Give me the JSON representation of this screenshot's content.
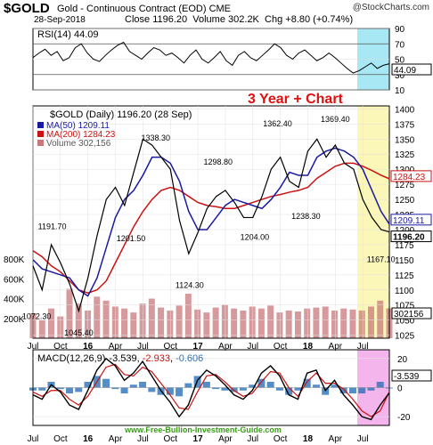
{
  "header": {
    "symbol": "$GOLD",
    "name": "Gold - Continuous Contract (EOD)",
    "exchange": "CME",
    "logo": "@StockCharts.com",
    "date": "28-Sep-2018",
    "close_label": "Close",
    "close_value": "1196.20",
    "volume_label": "Volume",
    "volume_value": "302.2K",
    "chg_label": "Chg",
    "chg_value": "+8.80 (+0.74%)"
  },
  "annotation_title": "3 Year + Chart",
  "watermark": "www.Free-Bullion-Investment-Guide.com",
  "colors": {
    "price": "#000000",
    "ma50": "#1a1aa0",
    "ma200": "#cc1111",
    "volume": "#c8787c",
    "rsi_highlight": "#a8e8f4",
    "price_highlight": "#fbf7b8",
    "macd_highlight": "#f4b4ec",
    "annotation": "#e01010",
    "watermark": "#3a9a1a"
  },
  "chart_data": [
    {
      "type": "line",
      "name": "rsi",
      "label": "RSI(14) 44.09",
      "current_value": "44.09",
      "ylim": [
        10,
        90
      ],
      "ticks": [
        "90",
        "70",
        "50",
        "30",
        "10"
      ],
      "reference_lines": [
        70,
        30
      ],
      "series": [
        {
          "values": [
            52,
            58,
            63,
            55,
            60,
            48,
            52,
            65,
            70,
            58,
            50,
            47,
            55,
            62,
            68,
            72,
            60,
            55,
            50,
            58,
            65,
            62,
            55,
            58,
            52,
            45,
            55,
            62,
            50,
            45,
            52,
            60,
            48,
            42,
            55,
            60,
            52,
            48,
            55,
            62,
            70,
            65,
            55,
            50,
            58,
            62,
            55,
            48,
            52,
            58,
            52,
            45,
            38,
            32,
            35,
            40,
            45,
            38,
            42,
            44.09
          ]
        }
      ]
    },
    {
      "type": "line",
      "name": "price",
      "label": "$GOLD (Daily) 1196.20 (28 Sep)",
      "ylim": [
        1020,
        1405
      ],
      "ticks": [
        "1400",
        "1375",
        "1350",
        "1325",
        "1300",
        "1275",
        "1250",
        "1225",
        "1200",
        "1175",
        "1150",
        "1125",
        "1100",
        "1075",
        "1050",
        "1025"
      ],
      "volume_ticks": [
        "800K",
        "600K",
        "400K",
        "200K"
      ],
      "x_ticks": [
        "Jul",
        "Oct",
        "16",
        "Apr",
        "Jul",
        "Oct",
        "17",
        "Apr",
        "Jul",
        "Oct",
        "18",
        "Apr",
        "Jul"
      ],
      "x_tick_pos": [
        0,
        3,
        6,
        9,
        12,
        15,
        18,
        21,
        24,
        27,
        30,
        33,
        36
      ],
      "x_range": [
        0,
        38.9
      ],
      "legend": [
        {
          "label": "MA(50) 1209.11",
          "color": "#1a1aa0"
        },
        {
          "label": "MA(200) 1284.23",
          "color": "#cc1111"
        },
        {
          "label": "Volume 302,156",
          "color": "#c8787c"
        }
      ],
      "right_labels": [
        {
          "text": "1284.23",
          "value": 1284.23,
          "color": "#cc1111"
        },
        {
          "text": "1209.11",
          "value": 1209.11,
          "color": "#1a1aa0"
        },
        {
          "text": "1196.20",
          "value": 1196.2,
          "color": "#000000"
        }
      ],
      "volume_label": "302156",
      "callouts": [
        {
          "text": "1072.30",
          "x": 0.4,
          "y": 1072.3
        },
        {
          "text": "1045.40",
          "x": 5.0,
          "y": 1045.4
        },
        {
          "text": "1191.70",
          "x": 2.1,
          "y": 1191.7
        },
        {
          "text": "1201.50",
          "x": 10.7,
          "y": 1201.5
        },
        {
          "text": "1338.30",
          "x": 13.4,
          "y": 1338.3
        },
        {
          "text": "1124.30",
          "x": 17.1,
          "y": 1124.3
        },
        {
          "text": "1298.80",
          "x": 20.2,
          "y": 1298.8
        },
        {
          "text": "1204.00",
          "x": 24.2,
          "y": 1204.0
        },
        {
          "text": "1362.40",
          "x": 26.7,
          "y": 1362.4
        },
        {
          "text": "1238.30",
          "x": 29.8,
          "y": 1238.3
        },
        {
          "text": "1369.40",
          "x": 33.0,
          "y": 1369.4
        },
        {
          "text": "1167.10",
          "x": 38.0,
          "y": 1167.1
        }
      ],
      "x": [
        0,
        1,
        2,
        3,
        4,
        5,
        6,
        7,
        8,
        9,
        10,
        11,
        12,
        13,
        14,
        15,
        16,
        17,
        18,
        19,
        20,
        21,
        22,
        23,
        24,
        25,
        26,
        27,
        28,
        29,
        30,
        31,
        32,
        33,
        34,
        35,
        36,
        37,
        38,
        38.9
      ],
      "series": [
        {
          "name": "$GOLD",
          "values": [
            1140,
            1100,
            1175,
            1145,
            1110,
            1065,
            1120,
            1190,
            1250,
            1270,
            1240,
            1295,
            1350,
            1340,
            1320,
            1300,
            1215,
            1160,
            1195,
            1235,
            1255,
            1265,
            1245,
            1220,
            1220,
            1255,
            1300,
            1320,
            1280,
            1270,
            1330,
            1350,
            1320,
            1340,
            1310,
            1300,
            1250,
            1220,
            1200,
            1196.2
          ]
        },
        {
          "name": "MA(50)",
          "values": [
            1150,
            1135,
            1130,
            1125,
            1120,
            1100,
            1090,
            1120,
            1170,
            1220,
            1250,
            1265,
            1290,
            1320,
            1320,
            1310,
            1280,
            1230,
            1200,
            1200,
            1220,
            1240,
            1250,
            1245,
            1240,
            1235,
            1250,
            1270,
            1295,
            1290,
            1290,
            1320,
            1330,
            1335,
            1330,
            1320,
            1300,
            1265,
            1230,
            1209.11
          ]
        },
        {
          "name": "MA(200)",
          "values": [
            1165,
            1155,
            1140,
            1130,
            1115,
            1100,
            1095,
            1100,
            1115,
            1145,
            1175,
            1205,
            1230,
            1250,
            1265,
            1270,
            1265,
            1255,
            1245,
            1240,
            1238,
            1235,
            1235,
            1240,
            1245,
            1250,
            1255,
            1258,
            1262,
            1265,
            1270,
            1285,
            1295,
            1305,
            1310,
            1310,
            1305,
            1298,
            1290,
            1284.23
          ]
        }
      ],
      "volume": [
        250,
        180,
        300,
        220,
        500,
        350,
        280,
        420,
        380,
        320,
        300,
        260,
        350,
        400,
        310,
        280,
        330,
        450,
        290,
        260,
        310,
        340,
        300,
        280,
        320,
        300,
        330,
        260,
        280,
        270,
        300,
        310,
        320,
        280,
        300,
        290,
        280,
        320,
        380,
        302
      ]
    },
    {
      "type": "line",
      "name": "macd",
      "label": "MACD(12,26,9) -3.539, -2.933, -0.606",
      "label_parts": [
        "MACD(12,26,9)",
        "-3.539",
        "-2.933",
        "-0.606"
      ],
      "current_value": "-3.539",
      "ylim": [
        -26,
        26
      ],
      "ticks": [
        "20",
        "0",
        "-20"
      ],
      "x_ticks": [
        "Jul",
        "Oct",
        "16",
        "Apr",
        "Jul",
        "Oct",
        "17",
        "Apr",
        "Jul",
        "Oct",
        "18",
        "Apr",
        "Jul"
      ],
      "series": [
        {
          "name": "MACD",
          "values": [
            -5,
            -8,
            2,
            -3,
            -12,
            -15,
            -2,
            12,
            20,
            15,
            5,
            10,
            18,
            8,
            -2,
            -10,
            -20,
            -12,
            5,
            12,
            8,
            2,
            -5,
            -8,
            -2,
            10,
            15,
            8,
            -5,
            -8,
            10,
            12,
            -2,
            5,
            -5,
            -12,
            -20,
            -22,
            -12,
            -3.539
          ]
        },
        {
          "name": "Signal",
          "values": [
            -3,
            -6,
            -2,
            -2,
            -8,
            -12,
            -6,
            4,
            14,
            16,
            9,
            8,
            14,
            11,
            3,
            -5,
            -14,
            -15,
            -3,
            8,
            9,
            4,
            -2,
            -6,
            -4,
            4,
            11,
            10,
            0,
            -6,
            4,
            10,
            3,
            3,
            -1,
            -8,
            -16,
            -20,
            -16,
            -2.933
          ]
        },
        {
          "name": "Histogram",
          "values": [
            -2,
            -2,
            4,
            -1,
            -4,
            -3,
            4,
            8,
            6,
            -1,
            -4,
            2,
            4,
            -3,
            -5,
            -5,
            -6,
            3,
            8,
            4,
            -1,
            -2,
            -3,
            -2,
            2,
            6,
            4,
            -2,
            -5,
            -2,
            6,
            2,
            -5,
            2,
            -4,
            -4,
            -4,
            -2,
            4,
            -0.606
          ]
        }
      ]
    }
  ]
}
